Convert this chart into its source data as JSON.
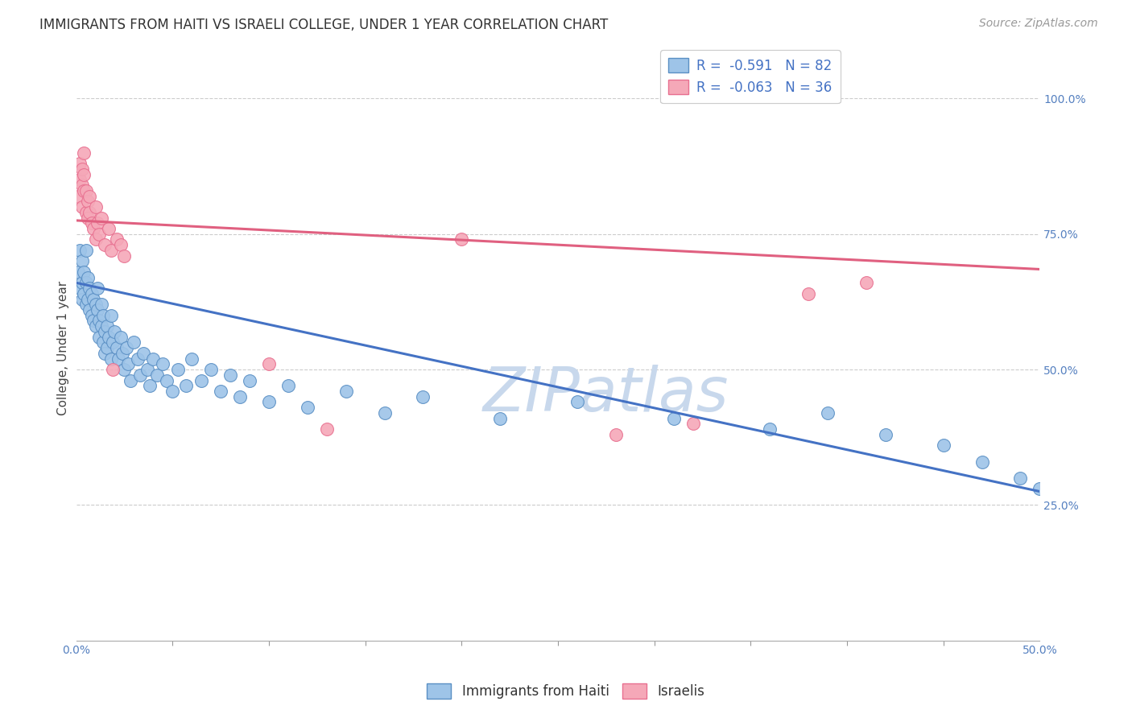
{
  "title": "IMMIGRANTS FROM HAITI VS ISRAELI COLLEGE, UNDER 1 YEAR CORRELATION CHART",
  "source": "Source: ZipAtlas.com",
  "ylabel": "College, Under 1 year",
  "watermark": "ZIPatlas",
  "legend_blue_r": "R =  -0.591",
  "legend_blue_n": "N = 82",
  "legend_pink_r": "R =  -0.063",
  "legend_pink_n": "N = 36",
  "legend_blue_label": "Immigrants from Haiti",
  "legend_pink_label": "Israelis",
  "right_ytick_vals": [
    1.0,
    0.75,
    0.5,
    0.25
  ],
  "right_ytick_labels": [
    "100.0%",
    "75.0%",
    "50.0%",
    "25.0%"
  ],
  "xlim": [
    0.0,
    0.5
  ],
  "ylim": [
    0.0,
    1.08
  ],
  "blue_color": "#9EC4E8",
  "pink_color": "#F5A8B8",
  "blue_edge_color": "#5A8FC4",
  "pink_edge_color": "#E87090",
  "blue_line_color": "#4472C4",
  "pink_line_color": "#E06080",
  "blue_scatter_x": [
    0.001,
    0.002,
    0.002,
    0.003,
    0.003,
    0.003,
    0.004,
    0.004,
    0.005,
    0.005,
    0.005,
    0.006,
    0.006,
    0.007,
    0.007,
    0.008,
    0.008,
    0.009,
    0.009,
    0.01,
    0.01,
    0.011,
    0.011,
    0.012,
    0.012,
    0.013,
    0.013,
    0.014,
    0.014,
    0.015,
    0.015,
    0.016,
    0.016,
    0.017,
    0.018,
    0.018,
    0.019,
    0.02,
    0.021,
    0.022,
    0.023,
    0.024,
    0.025,
    0.026,
    0.027,
    0.028,
    0.03,
    0.032,
    0.033,
    0.035,
    0.037,
    0.038,
    0.04,
    0.042,
    0.045,
    0.047,
    0.05,
    0.053,
    0.057,
    0.06,
    0.065,
    0.07,
    0.075,
    0.08,
    0.085,
    0.09,
    0.1,
    0.11,
    0.12,
    0.14,
    0.16,
    0.18,
    0.22,
    0.26,
    0.31,
    0.36,
    0.39,
    0.42,
    0.45,
    0.47,
    0.49,
    0.5
  ],
  "blue_scatter_y": [
    0.68,
    0.72,
    0.65,
    0.7,
    0.66,
    0.63,
    0.68,
    0.64,
    0.72,
    0.66,
    0.62,
    0.67,
    0.63,
    0.65,
    0.61,
    0.64,
    0.6,
    0.63,
    0.59,
    0.62,
    0.58,
    0.65,
    0.61,
    0.59,
    0.56,
    0.62,
    0.58,
    0.55,
    0.6,
    0.57,
    0.53,
    0.58,
    0.54,
    0.56,
    0.6,
    0.52,
    0.55,
    0.57,
    0.54,
    0.52,
    0.56,
    0.53,
    0.5,
    0.54,
    0.51,
    0.48,
    0.55,
    0.52,
    0.49,
    0.53,
    0.5,
    0.47,
    0.52,
    0.49,
    0.51,
    0.48,
    0.46,
    0.5,
    0.47,
    0.52,
    0.48,
    0.5,
    0.46,
    0.49,
    0.45,
    0.48,
    0.44,
    0.47,
    0.43,
    0.46,
    0.42,
    0.45,
    0.41,
    0.44,
    0.41,
    0.39,
    0.42,
    0.38,
    0.36,
    0.33,
    0.3,
    0.28
  ],
  "pink_scatter_x": [
    0.001,
    0.002,
    0.002,
    0.003,
    0.003,
    0.003,
    0.004,
    0.004,
    0.004,
    0.005,
    0.005,
    0.006,
    0.006,
    0.007,
    0.007,
    0.008,
    0.009,
    0.01,
    0.01,
    0.011,
    0.012,
    0.013,
    0.015,
    0.017,
    0.018,
    0.019,
    0.021,
    0.023,
    0.025,
    0.1,
    0.13,
    0.2,
    0.28,
    0.32,
    0.38,
    0.41
  ],
  "pink_scatter_y": [
    0.82,
    0.85,
    0.88,
    0.8,
    0.84,
    0.87,
    0.83,
    0.86,
    0.9,
    0.79,
    0.83,
    0.81,
    0.78,
    0.82,
    0.79,
    0.77,
    0.76,
    0.8,
    0.74,
    0.77,
    0.75,
    0.78,
    0.73,
    0.76,
    0.72,
    0.5,
    0.74,
    0.73,
    0.71,
    0.51,
    0.39,
    0.74,
    0.38,
    0.4,
    0.64,
    0.66
  ],
  "blue_trend_x": [
    0.0,
    0.5
  ],
  "blue_trend_y": [
    0.66,
    0.275
  ],
  "pink_trend_x": [
    0.0,
    0.5
  ],
  "pink_trend_y": [
    0.775,
    0.685
  ],
  "background_color": "#FFFFFF",
  "grid_color": "#CCCCCC",
  "title_fontsize": 12,
  "source_fontsize": 10,
  "axis_label_fontsize": 11,
  "tick_fontsize": 10,
  "legend_fontsize": 12,
  "watermark_fontsize": 55,
  "watermark_color": "#C8D8EC",
  "marker_size": 130,
  "marker_linewidth": 0.8
}
